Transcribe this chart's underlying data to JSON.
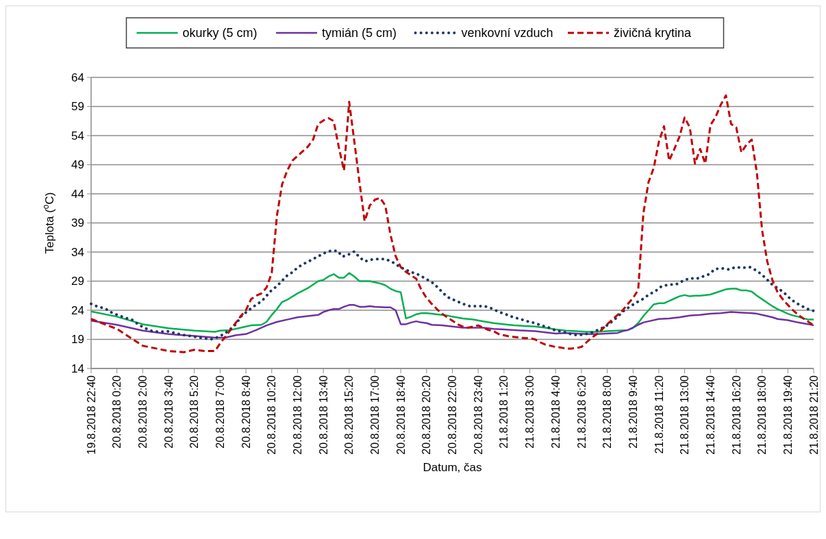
{
  "chart_data": {
    "type": "line",
    "xlabel": "Datum, čas",
    "ylabel": "Teplota ($^{o}$C)",
    "ylim": [
      14,
      64
    ],
    "yticks": [
      14,
      19,
      24,
      29,
      34,
      39,
      44,
      49,
      54,
      59,
      64
    ],
    "grid": "y",
    "legend": "top",
    "xlim": [
      "2018-08-19T22:40",
      "2018-08-21T21:20"
    ],
    "xticks": [
      {
        "value": "2018-08-19T22:40",
        "label": "19.8.2018 22:40"
      },
      {
        "value": "2018-08-20T00:20",
        "label": "20.8.2018 0:20"
      },
      {
        "value": "2018-08-20T02:00",
        "label": "20.8.2018 2:00"
      },
      {
        "value": "2018-08-20T03:40",
        "label": "20.8.2018 3:40"
      },
      {
        "value": "2018-08-20T05:20",
        "label": "20.8.2018 5:20"
      },
      {
        "value": "2018-08-20T07:00",
        "label": "20.8.2018 7:00"
      },
      {
        "value": "2018-08-20T08:40",
        "label": "20.8.2018 8:40"
      },
      {
        "value": "2018-08-20T10:20",
        "label": "20.8.2018 10:20"
      },
      {
        "value": "2018-08-20T12:00",
        "label": "20.8.2018 12:00"
      },
      {
        "value": "2018-08-20T13:40",
        "label": "20.8.2018 13:40"
      },
      {
        "value": "2018-08-20T15:20",
        "label": "20.8.2018 15:20"
      },
      {
        "value": "2018-08-20T17:00",
        "label": "20.8.2018 17:00"
      },
      {
        "value": "2018-08-20T18:40",
        "label": "20.8.2018 18:40"
      },
      {
        "value": "2018-08-20T20:20",
        "label": "20.8.2018 20:20"
      },
      {
        "value": "2018-08-20T22:00",
        "label": "20.8.2018 22:00"
      },
      {
        "value": "2018-08-20T23:40",
        "label": "20.8.2018 23:40"
      },
      {
        "value": "2018-08-21T01:20",
        "label": "21.8.2018 1:20"
      },
      {
        "value": "2018-08-21T03:00",
        "label": "21.8.2018 3:00"
      },
      {
        "value": "2018-08-21T04:40",
        "label": "21.8.2018 4:40"
      },
      {
        "value": "2018-08-21T06:20",
        "label": "21.8.2018 6:20"
      },
      {
        "value": "2018-08-21T08:00",
        "label": "21.8.2018 8:00"
      },
      {
        "value": "2018-08-21T09:40",
        "label": "21.8.2018 9:40"
      },
      {
        "value": "2018-08-21T11:20",
        "label": "21.8.2018 11:20"
      },
      {
        "value": "2018-08-21T13:00",
        "label": "21.8.2018 13:00"
      },
      {
        "value": "2018-08-21T14:40",
        "label": "21.8.2018 14:40"
      },
      {
        "value": "2018-08-21T16:20",
        "label": "21.8.2018 16:20"
      },
      {
        "value": "2018-08-21T18:00",
        "label": "21.8.2018 18:00"
      },
      {
        "value": "2018-08-21T19:40",
        "label": "21.8.2018 19:40"
      },
      {
        "value": "2018-08-21T21:20",
        "label": "21.8.2018 21:20"
      }
    ],
    "series": [
      {
        "name": "okurky (5 cm)",
        "color": "#00b050",
        "line_style": "solid",
        "x": [
          "2018-08-19T22:40",
          "2018-08-20T00:20",
          "2018-08-20T02:00",
          "2018-08-20T03:40",
          "2018-08-20T05:20",
          "2018-08-20T06:40",
          "2018-08-20T07:00",
          "2018-08-20T07:40",
          "2018-08-20T08:20",
          "2018-08-20T08:40",
          "2018-08-20T09:00",
          "2018-08-20T09:40",
          "2018-08-20T10:00",
          "2018-08-20T10:20",
          "2018-08-20T10:40",
          "2018-08-20T11:00",
          "2018-08-20T11:20",
          "2018-08-20T12:00",
          "2018-08-20T12:40",
          "2018-08-20T13:20",
          "2018-08-20T13:40",
          "2018-08-20T14:00",
          "2018-08-20T14:20",
          "2018-08-20T14:40",
          "2018-08-20T15:00",
          "2018-08-20T15:20",
          "2018-08-20T15:40",
          "2018-08-20T16:00",
          "2018-08-20T16:40",
          "2018-08-20T17:00",
          "2018-08-20T17:20",
          "2018-08-20T17:40",
          "2018-08-20T18:00",
          "2018-08-20T18:20",
          "2018-08-20T18:40",
          "2018-08-20T19:00",
          "2018-08-20T19:20",
          "2018-08-20T19:40",
          "2018-08-20T20:00",
          "2018-08-20T20:20",
          "2018-08-20T20:40",
          "2018-08-20T21:00",
          "2018-08-20T21:20",
          "2018-08-20T21:40",
          "2018-08-20T22:00",
          "2018-08-20T22:40",
          "2018-08-20T23:20",
          "2018-08-21T00:00",
          "2018-08-21T00:40",
          "2018-08-21T01:20",
          "2018-08-21T02:00",
          "2018-08-21T02:40",
          "2018-08-21T03:20",
          "2018-08-21T04:00",
          "2018-08-21T04:40",
          "2018-08-21T05:20",
          "2018-08-21T06:00",
          "2018-08-21T06:40",
          "2018-08-21T07:20",
          "2018-08-21T08:00",
          "2018-08-21T08:40",
          "2018-08-21T09:20",
          "2018-08-21T09:40",
          "2018-08-21T10:00",
          "2018-08-21T10:20",
          "2018-08-21T10:40",
          "2018-08-21T11:00",
          "2018-08-21T11:20",
          "2018-08-21T11:40",
          "2018-08-21T12:00",
          "2018-08-21T12:20",
          "2018-08-21T12:40",
          "2018-08-21T13:00",
          "2018-08-21T13:20",
          "2018-08-21T13:40",
          "2018-08-21T14:00",
          "2018-08-21T14:20",
          "2018-08-21T14:40",
          "2018-08-21T15:00",
          "2018-08-21T15:20",
          "2018-08-21T15:40",
          "2018-08-21T16:00",
          "2018-08-21T16:20",
          "2018-08-21T16:40",
          "2018-08-21T17:00",
          "2018-08-21T17:20",
          "2018-08-21T17:40",
          "2018-08-21T18:00",
          "2018-08-21T18:20",
          "2018-08-21T18:40",
          "2018-08-21T19:00",
          "2018-08-21T19:20",
          "2018-08-21T19:40",
          "2018-08-21T20:00",
          "2018-08-21T20:20",
          "2018-08-21T20:40",
          "2018-08-21T21:00",
          "2018-08-21T21:20"
        ],
        "values": [
          23.8,
          22.9,
          21.6,
          20.9,
          20.5,
          20.3,
          20.5,
          20.6,
          21.0,
          21.2,
          21.4,
          21.5,
          22.0,
          23.2,
          24.2,
          25.4,
          25.8,
          26.9,
          27.8,
          29.0,
          29.2,
          29.8,
          30.2,
          29.6,
          29.6,
          30.4,
          29.8,
          29.0,
          29.0,
          28.8,
          28.6,
          28.3,
          27.7,
          27.3,
          27.1,
          22.6,
          22.9,
          23.3,
          23.5,
          23.5,
          23.4,
          23.3,
          23.2,
          23.1,
          22.9,
          22.6,
          22.4,
          22.1,
          21.8,
          21.6,
          21.4,
          21.3,
          21.2,
          21.0,
          20.7,
          20.5,
          20.4,
          20.3,
          20.3,
          20.4,
          20.5,
          20.6,
          21.0,
          21.8,
          23.0,
          24.0,
          25.0,
          25.2,
          25.2,
          25.6,
          26.0,
          26.4,
          26.6,
          26.4,
          26.5,
          26.5,
          26.6,
          26.7,
          27.0,
          27.3,
          27.6,
          27.7,
          27.7,
          27.4,
          27.4,
          27.2,
          26.5,
          25.9,
          25.3,
          24.7,
          24.2,
          23.8,
          23.4,
          23.1,
          22.9,
          22.6,
          22.4,
          22.4
        ]
      },
      {
        "name": "tymián (5 cm)",
        "color": "#7030a0",
        "line_style": "solid",
        "x": [
          "2018-08-19T22:40",
          "2018-08-20T00:20",
          "2018-08-20T02:00",
          "2018-08-20T03:40",
          "2018-08-20T05:20",
          "2018-08-20T06:40",
          "2018-08-20T07:20",
          "2018-08-20T08:00",
          "2018-08-20T08:40",
          "2018-08-20T09:20",
          "2018-08-20T10:00",
          "2018-08-20T10:40",
          "2018-08-20T11:20",
          "2018-08-20T12:00",
          "2018-08-20T12:40",
          "2018-08-20T13:20",
          "2018-08-20T13:40",
          "2018-08-20T14:00",
          "2018-08-20T14:20",
          "2018-08-20T14:40",
          "2018-08-20T15:00",
          "2018-08-20T15:20",
          "2018-08-20T15:40",
          "2018-08-20T16:00",
          "2018-08-20T16:20",
          "2018-08-20T16:40",
          "2018-08-20T17:00",
          "2018-08-20T17:40",
          "2018-08-20T18:00",
          "2018-08-20T18:20",
          "2018-08-20T18:40",
          "2018-08-20T19:00",
          "2018-08-20T19:20",
          "2018-08-20T19:40",
          "2018-08-20T20:00",
          "2018-08-20T20:20",
          "2018-08-20T20:40",
          "2018-08-20T21:20",
          "2018-08-20T22:00",
          "2018-08-20T22:40",
          "2018-08-20T23:20",
          "2018-08-21T00:00",
          "2018-08-21T00:40",
          "2018-08-21T01:20",
          "2018-08-21T02:00",
          "2018-08-21T02:40",
          "2018-08-21T03:20",
          "2018-08-21T04:00",
          "2018-08-21T04:40",
          "2018-08-21T05:20",
          "2018-08-21T06:00",
          "2018-08-21T06:40",
          "2018-08-21T07:20",
          "2018-08-21T08:00",
          "2018-08-21T08:40",
          "2018-08-21T09:00",
          "2018-08-21T09:20",
          "2018-08-21T09:40",
          "2018-08-21T10:00",
          "2018-08-21T10:20",
          "2018-08-21T10:40",
          "2018-08-21T11:20",
          "2018-08-21T12:00",
          "2018-08-21T12:40",
          "2018-08-21T13:20",
          "2018-08-21T14:00",
          "2018-08-21T14:40",
          "2018-08-21T15:20",
          "2018-08-21T16:00",
          "2018-08-21T16:40",
          "2018-08-21T17:20",
          "2018-08-21T17:40",
          "2018-08-21T18:00",
          "2018-08-21T18:40",
          "2018-08-21T19:00",
          "2018-08-21T19:40",
          "2018-08-21T20:20",
          "2018-08-21T21:00",
          "2018-08-21T21:20"
        ],
        "values": [
          22.2,
          21.5,
          20.5,
          19.9,
          19.6,
          19.3,
          19.3,
          19.7,
          19.9,
          20.6,
          21.4,
          22.0,
          22.4,
          22.8,
          23.0,
          23.2,
          23.7,
          24.0,
          24.2,
          24.2,
          24.6,
          24.9,
          24.9,
          24.6,
          24.6,
          24.7,
          24.6,
          24.5,
          24.5,
          24.0,
          21.6,
          21.6,
          21.9,
          22.1,
          21.9,
          21.8,
          21.5,
          21.4,
          21.2,
          21.0,
          21.0,
          21.0,
          20.8,
          20.7,
          20.6,
          20.5,
          20.4,
          20.2,
          20.0,
          20.1,
          20.0,
          19.9,
          19.9,
          20.0,
          20.1,
          20.4,
          20.6,
          21.0,
          21.5,
          21.9,
          22.1,
          22.5,
          22.6,
          22.8,
          23.1,
          23.2,
          23.4,
          23.5,
          23.7,
          23.6,
          23.5,
          23.4,
          23.2,
          22.8,
          22.5,
          22.3,
          21.9,
          21.6,
          21.4
        ]
      },
      {
        "name": "venkovní vzduch",
        "color": "#1f3864",
        "line_style": "dotted",
        "x": [
          "2018-08-19T22:40",
          "2018-08-19T23:07",
          "2018-08-19T23:34",
          "2018-08-20T00:00",
          "2018-08-20T00:27",
          "2018-08-20T00:53",
          "2018-08-20T01:22",
          "2018-08-20T01:45",
          "2018-08-20T02:10",
          "2018-08-20T02:38",
          "2018-08-20T03:06",
          "2018-08-20T03:35",
          "2018-08-20T04:03",
          "2018-08-20T04:31",
          "2018-08-20T05:00",
          "2018-08-20T05:28",
          "2018-08-20T05:56",
          "2018-08-20T06:24",
          "2018-08-20T06:53",
          "2018-08-20T07:18",
          "2018-08-20T07:41",
          "2018-08-20T08:03",
          "2018-08-20T08:20",
          "2018-08-20T08:42",
          "2018-08-20T09:05",
          "2018-08-20T09:29",
          "2018-08-20T09:51",
          "2018-08-20T10:11",
          "2018-08-20T10:33",
          "2018-08-20T10:55",
          "2018-08-20T11:15",
          "2018-08-20T11:39",
          "2018-08-20T12:02",
          "2018-08-20T12:25",
          "2018-08-20T12:52",
          "2018-08-20T13:17",
          "2018-08-20T13:43",
          "2018-08-20T14:08",
          "2018-08-20T14:35",
          "2018-08-20T14:54",
          "2018-08-20T15:19",
          "2018-08-20T15:40",
          "2018-08-20T16:00",
          "2018-08-20T16:21",
          "2018-08-20T16:45",
          "2018-08-20T17:14",
          "2018-08-20T17:40",
          "2018-08-20T18:07",
          "2018-08-20T18:31",
          "2018-08-20T18:57",
          "2018-08-20T19:24",
          "2018-08-20T19:50",
          "2018-08-20T20:17",
          "2018-08-20T20:41",
          "2018-08-20T21:04",
          "2018-08-20T21:25",
          "2018-08-20T21:48",
          "2018-08-20T22:15",
          "2018-08-20T22:41",
          "2018-08-20T23:08",
          "2018-08-20T23:36",
          "2018-08-21T00:05",
          "2018-08-21T00:33",
          "2018-08-21T01:01",
          "2018-08-21T01:27",
          "2018-08-21T01:56",
          "2018-08-21T02:22",
          "2018-08-21T02:51",
          "2018-08-21T03:19",
          "2018-08-21T03:45",
          "2018-08-21T04:15",
          "2018-08-21T04:41",
          "2018-08-21T05:09",
          "2018-08-21T05:39",
          "2018-08-21T06:07",
          "2018-08-21T06:36",
          "2018-08-21T07:03",
          "2018-08-21T07:29",
          "2018-08-21T07:56",
          "2018-08-21T08:20",
          "2018-08-21T08:43",
          "2018-08-21T09:04",
          "2018-08-21T09:27",
          "2018-08-21T09:52",
          "2018-08-21T10:17",
          "2018-08-21T10:42",
          "2018-08-21T11:07",
          "2018-08-21T11:30",
          "2018-08-21T11:57",
          "2018-08-21T12:25",
          "2018-08-21T12:51",
          "2018-08-21T13:19",
          "2018-08-21T13:45",
          "2018-08-21T14:11",
          "2018-08-21T14:35",
          "2018-08-21T14:58",
          "2018-08-21T15:25",
          "2018-08-21T15:52",
          "2018-08-21T16:17",
          "2018-08-21T16:45",
          "2018-08-21T17:13",
          "2018-08-21T17:35",
          "2018-08-21T18:00",
          "2018-08-21T18:21",
          "2018-08-21T18:42",
          "2018-08-21T19:05",
          "2018-08-21T19:28",
          "2018-08-21T19:51",
          "2018-08-21T20:14",
          "2018-08-21T20:39",
          "2018-08-21T21:07",
          "2018-08-21T21:20"
        ],
        "values": [
          25.1,
          24.6,
          24.3,
          23.6,
          23.1,
          22.7,
          22.3,
          21.5,
          20.9,
          20.4,
          20.3,
          20.4,
          20.1,
          19.8,
          19.6,
          19.4,
          19.2,
          19.0,
          19.4,
          20.0,
          20.8,
          21.7,
          22.9,
          23.7,
          24.5,
          25.2,
          26.0,
          27.1,
          27.9,
          28.8,
          29.8,
          30.5,
          31.4,
          32.0,
          32.6,
          33.2,
          33.8,
          34.2,
          34.2,
          33.2,
          33.6,
          34.1,
          33.1,
          32.4,
          32.7,
          32.8,
          32.8,
          32.3,
          31.6,
          31.0,
          30.5,
          30.1,
          29.4,
          28.8,
          27.9,
          26.9,
          26.1,
          25.6,
          25.1,
          24.7,
          24.7,
          24.7,
          24.3,
          23.7,
          23.3,
          22.8,
          22.5,
          22.1,
          21.8,
          21.4,
          21.0,
          20.5,
          20.3,
          19.9,
          19.7,
          19.9,
          20.2,
          20.7,
          21.3,
          22.1,
          23.0,
          23.9,
          24.6,
          25.3,
          25.9,
          26.7,
          27.3,
          28.1,
          28.4,
          28.4,
          29.0,
          29.5,
          29.4,
          29.8,
          30.2,
          31.1,
          31.2,
          31.0,
          31.4,
          31.3,
          31.4,
          30.9,
          30.1,
          29.2,
          28.3,
          27.7,
          26.9,
          25.9,
          25.2,
          24.6,
          24.0,
          23.9
        ]
      },
      {
        "name": "živičná krytina",
        "color": "#c00000",
        "line_style": "dashed",
        "x": [
          "2018-08-19T22:40",
          "2018-08-20T00:20",
          "2018-08-20T02:00",
          "2018-08-20T03:40",
          "2018-08-20T04:40",
          "2018-08-20T05:20",
          "2018-08-20T06:00",
          "2018-08-20T06:40",
          "2018-08-20T07:00",
          "2018-08-20T07:40",
          "2018-08-20T08:20",
          "2018-08-20T08:40",
          "2018-08-20T09:00",
          "2018-08-20T09:20",
          "2018-08-20T09:40",
          "2018-08-20T10:00",
          "2018-08-20T10:20",
          "2018-08-20T10:40",
          "2018-08-20T11:00",
          "2018-08-20T11:20",
          "2018-08-20T11:40",
          "2018-08-20T12:00",
          "2018-08-20T12:20",
          "2018-08-20T12:40",
          "2018-08-20T13:00",
          "2018-08-20T13:20",
          "2018-08-20T13:40",
          "2018-08-20T14:00",
          "2018-08-20T14:20",
          "2018-08-20T14:40",
          "2018-08-20T15:00",
          "2018-08-20T15:20",
          "2018-08-20T15:40",
          "2018-08-20T16:00",
          "2018-08-20T16:20",
          "2018-08-20T16:40",
          "2018-08-20T17:00",
          "2018-08-20T17:20",
          "2018-08-20T17:40",
          "2018-08-20T18:00",
          "2018-08-20T18:20",
          "2018-08-20T18:40",
          "2018-08-20T19:00",
          "2018-08-20T19:20",
          "2018-08-20T19:40",
          "2018-08-20T20:00",
          "2018-08-20T20:20",
          "2018-08-20T20:40",
          "2018-08-20T21:00",
          "2018-08-20T21:20",
          "2018-08-20T21:40",
          "2018-08-20T22:00",
          "2018-08-20T22:20",
          "2018-08-20T22:40",
          "2018-08-20T23:00",
          "2018-08-20T23:20",
          "2018-08-20T23:40",
          "2018-08-21T00:00",
          "2018-08-21T00:20",
          "2018-08-21T00:40",
          "2018-08-21T01:00",
          "2018-08-21T01:20",
          "2018-08-21T01:40",
          "2018-08-21T02:00",
          "2018-08-21T02:20",
          "2018-08-21T02:40",
          "2018-08-21T03:00",
          "2018-08-21T03:20",
          "2018-08-21T03:40",
          "2018-08-21T04:00",
          "2018-08-21T04:20",
          "2018-08-21T04:40",
          "2018-08-21T05:00",
          "2018-08-21T05:20",
          "2018-08-21T05:40",
          "2018-08-21T06:00",
          "2018-08-21T06:20",
          "2018-08-21T06:40",
          "2018-08-21T07:00",
          "2018-08-21T07:20",
          "2018-08-21T07:40",
          "2018-08-21T08:00",
          "2018-08-21T08:20",
          "2018-08-21T08:40",
          "2018-08-21T09:00",
          "2018-08-21T09:20",
          "2018-08-21T09:40",
          "2018-08-21T10:00",
          "2018-08-21T10:20",
          "2018-08-21T10:40",
          "2018-08-21T11:00",
          "2018-08-21T11:20",
          "2018-08-21T11:40",
          "2018-08-21T12:00",
          "2018-08-21T12:20",
          "2018-08-21T12:40",
          "2018-08-21T13:00",
          "2018-08-21T13:20",
          "2018-08-21T13:40",
          "2018-08-21T14:00",
          "2018-08-21T14:20",
          "2018-08-21T14:40",
          "2018-08-21T15:00",
          "2018-08-21T15:20",
          "2018-08-21T15:40",
          "2018-08-21T16:00",
          "2018-08-21T16:20",
          "2018-08-21T16:40",
          "2018-08-21T17:00",
          "2018-08-21T17:20",
          "2018-08-21T17:40",
          "2018-08-21T18:00",
          "2018-08-21T18:20",
          "2018-08-21T18:40",
          "2018-08-21T19:00",
          "2018-08-21T19:20",
          "2018-08-21T19:40",
          "2018-08-21T20:00",
          "2018-08-21T20:20",
          "2018-08-21T20:40",
          "2018-08-21T21:00",
          "2018-08-21T21:20"
        ],
        "values": [
          22.5,
          20.8,
          17.9,
          17.0,
          16.8,
          17.2,
          17.0,
          17.0,
          18.3,
          20.6,
          23.0,
          24.0,
          25.9,
          26.5,
          26.9,
          27.9,
          30.4,
          40.2,
          45.6,
          48.0,
          49.7,
          50.5,
          51.3,
          52.1,
          53.3,
          56.0,
          56.6,
          57.0,
          56.5,
          52.0,
          48.0,
          59.8,
          53.0,
          46.0,
          39.3,
          42.0,
          43.0,
          43.3,
          42.0,
          37.0,
          33.3,
          31.4,
          30.6,
          30.0,
          29.4,
          27.5,
          26.1,
          25.1,
          24.2,
          23.4,
          22.8,
          22.2,
          21.6,
          21.2,
          21.0,
          21.2,
          21.4,
          21.0,
          20.6,
          20.4,
          19.9,
          19.7,
          19.5,
          19.4,
          19.3,
          19.2,
          19.2,
          19.0,
          18.5,
          18.1,
          17.9,
          17.7,
          17.6,
          17.4,
          17.4,
          17.5,
          17.7,
          18.5,
          19.3,
          19.9,
          20.7,
          21.6,
          22.4,
          23.2,
          24.0,
          25.1,
          26.1,
          27.5,
          40.6,
          46.0,
          48.4,
          52.9,
          55.6,
          49.7,
          51.7,
          53.8,
          57.1,
          55.4,
          49.2,
          51.7,
          49.2,
          55.8,
          57.2,
          59.3,
          60.9,
          56.0,
          55.4,
          51.1,
          52.5,
          53.3,
          47.6,
          37.8,
          32.4,
          29.2,
          27.1,
          25.9,
          24.9,
          24.0,
          23.2,
          22.6,
          22.0,
          21.4
        ]
      }
    ]
  }
}
